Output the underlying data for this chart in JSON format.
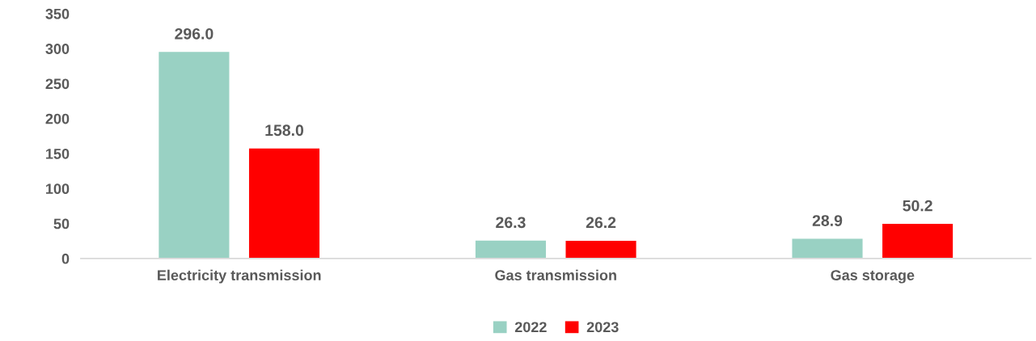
{
  "chart_data": {
    "type": "bar",
    "categories": [
      "Electricity transmission",
      "Gas transmission",
      "Gas storage"
    ],
    "series": [
      {
        "name": "2022",
        "color": "#99d1c3",
        "values": [
          296.0,
          26.3,
          28.9
        ],
        "value_labels": [
          "296.0",
          "26.3",
          "28.9"
        ]
      },
      {
        "name": "2023",
        "color": "#ff0000",
        "values": [
          158.0,
          26.2,
          50.2
        ],
        "value_labels": [
          "158.0",
          "26.2",
          "50.2"
        ]
      }
    ],
    "ylim": [
      0,
      350
    ],
    "yticks": [
      0,
      50,
      100,
      150,
      200,
      250,
      300,
      350
    ],
    "grid": false,
    "legend": "bottom"
  }
}
